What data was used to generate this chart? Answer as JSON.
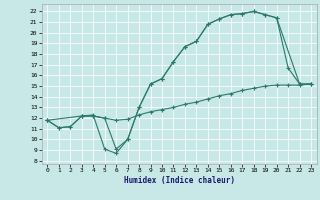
{
  "xlabel": "Humidex (Indice chaleur)",
  "background_color": "#c8e8e8",
  "line_color": "#2a7a6a",
  "xlim": [
    -0.5,
    23.5
  ],
  "ylim": [
    7.7,
    22.7
  ],
  "yticks": [
    8,
    9,
    10,
    11,
    12,
    13,
    14,
    15,
    16,
    17,
    18,
    19,
    20,
    21,
    22
  ],
  "xticks": [
    0,
    1,
    2,
    3,
    4,
    5,
    6,
    7,
    8,
    9,
    10,
    11,
    12,
    13,
    14,
    15,
    16,
    17,
    18,
    19,
    20,
    21,
    22,
    23
  ],
  "line1_x": [
    0,
    1,
    2,
    3,
    4,
    5,
    6,
    7,
    8,
    9,
    10,
    11,
    12,
    13,
    14,
    15,
    16,
    17,
    18,
    19,
    20,
    21,
    22,
    23
  ],
  "line1_y": [
    11.8,
    11.1,
    11.2,
    12.2,
    12.3,
    9.1,
    8.7,
    10.0,
    13.0,
    15.2,
    15.7,
    17.3,
    18.7,
    19.2,
    20.8,
    21.3,
    21.7,
    21.8,
    22.0,
    21.7,
    21.4,
    16.7,
    15.2,
    15.2
  ],
  "line2_x": [
    0,
    1,
    2,
    3,
    4,
    5,
    6,
    7,
    8,
    9,
    10,
    11,
    12,
    13,
    14,
    15,
    16,
    17,
    18,
    19,
    20,
    21,
    22,
    23
  ],
  "line2_y": [
    11.8,
    11.1,
    11.2,
    12.2,
    12.2,
    12.0,
    11.8,
    11.9,
    12.3,
    12.6,
    12.8,
    13.0,
    13.3,
    13.5,
    13.8,
    14.1,
    14.3,
    14.6,
    14.8,
    15.0,
    15.1,
    15.1,
    15.1,
    15.2
  ],
  "line3_x": [
    0,
    3,
    4,
    5,
    6,
    7,
    8,
    9,
    10,
    11,
    12,
    13,
    14,
    15,
    16,
    17,
    18,
    19,
    20,
    22,
    23
  ],
  "line3_y": [
    11.8,
    12.2,
    12.2,
    12.0,
    9.1,
    10.0,
    13.0,
    15.2,
    15.7,
    17.3,
    18.7,
    19.2,
    20.8,
    21.3,
    21.7,
    21.8,
    22.0,
    21.7,
    21.4,
    15.2,
    15.2
  ],
  "xlabel_fontsize": 5.5,
  "tick_fontsize": 4.5
}
